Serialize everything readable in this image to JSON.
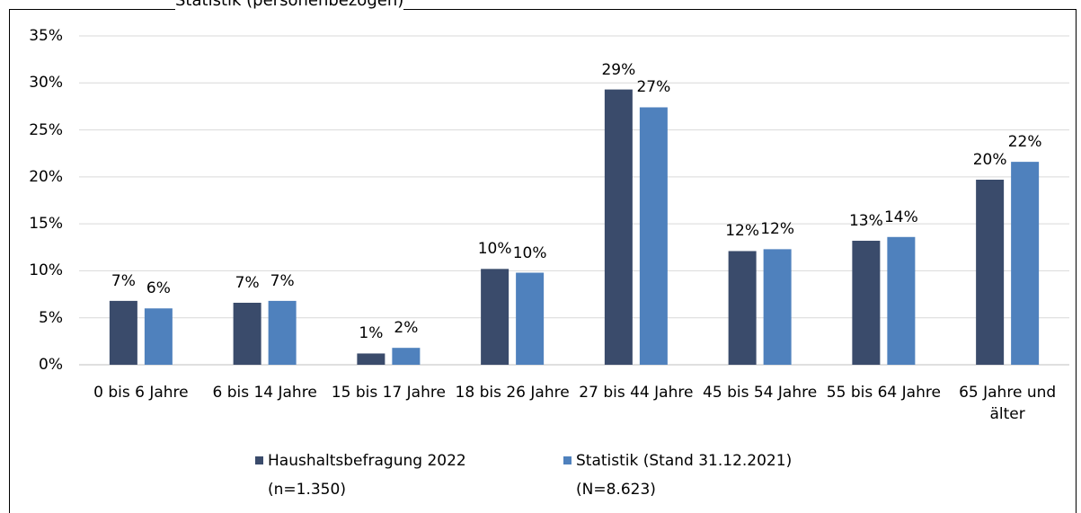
{
  "chart_data": {
    "type": "bar",
    "title": "Statistik (personenbezogen)",
    "categories": [
      "0 bis 6 Jahre",
      "6 bis 14 Jahre",
      "15 bis 17 Jahre",
      "18 bis 26 Jahre",
      "27 bis 44 Jahre",
      "45 bis 54 Jahre",
      "55 bis 64 Jahre",
      "65 Jahre und älter"
    ],
    "series": [
      {
        "name": "Haushaltsbefragung 2022 (n=1.350)",
        "color": "#3a4b6b",
        "values": [
          6.8,
          6.6,
          1.2,
          10.2,
          29.3,
          12.1,
          13.2,
          19.7
        ],
        "value_labels": [
          "7%",
          "7%",
          "1%",
          "10%",
          "29%",
          "12%",
          "13%",
          "20%"
        ]
      },
      {
        "name": "Statistik (Stand 31.12.2021) (N=8.623)",
        "color": "#4f81bd",
        "values": [
          6.0,
          6.8,
          1.8,
          9.8,
          27.4,
          12.3,
          13.6,
          21.6
        ],
        "value_labels": [
          "6%",
          "7%",
          "2%",
          "10%",
          "27%",
          "12%",
          "14%",
          "22%"
        ]
      }
    ],
    "ylim": [
      0,
      35
    ],
    "yticks": [
      {
        "value": 0,
        "label": "0%"
      },
      {
        "value": 5,
        "label": "5%"
      },
      {
        "value": 10,
        "label": "10%"
      },
      {
        "value": 15,
        "label": "15%"
      },
      {
        "value": 20,
        "label": "20%"
      },
      {
        "value": 25,
        "label": "25%"
      },
      {
        "value": 30,
        "label": "30%"
      },
      {
        "value": 35,
        "label": "35%"
      }
    ],
    "grid": true,
    "legend": "bottom"
  }
}
